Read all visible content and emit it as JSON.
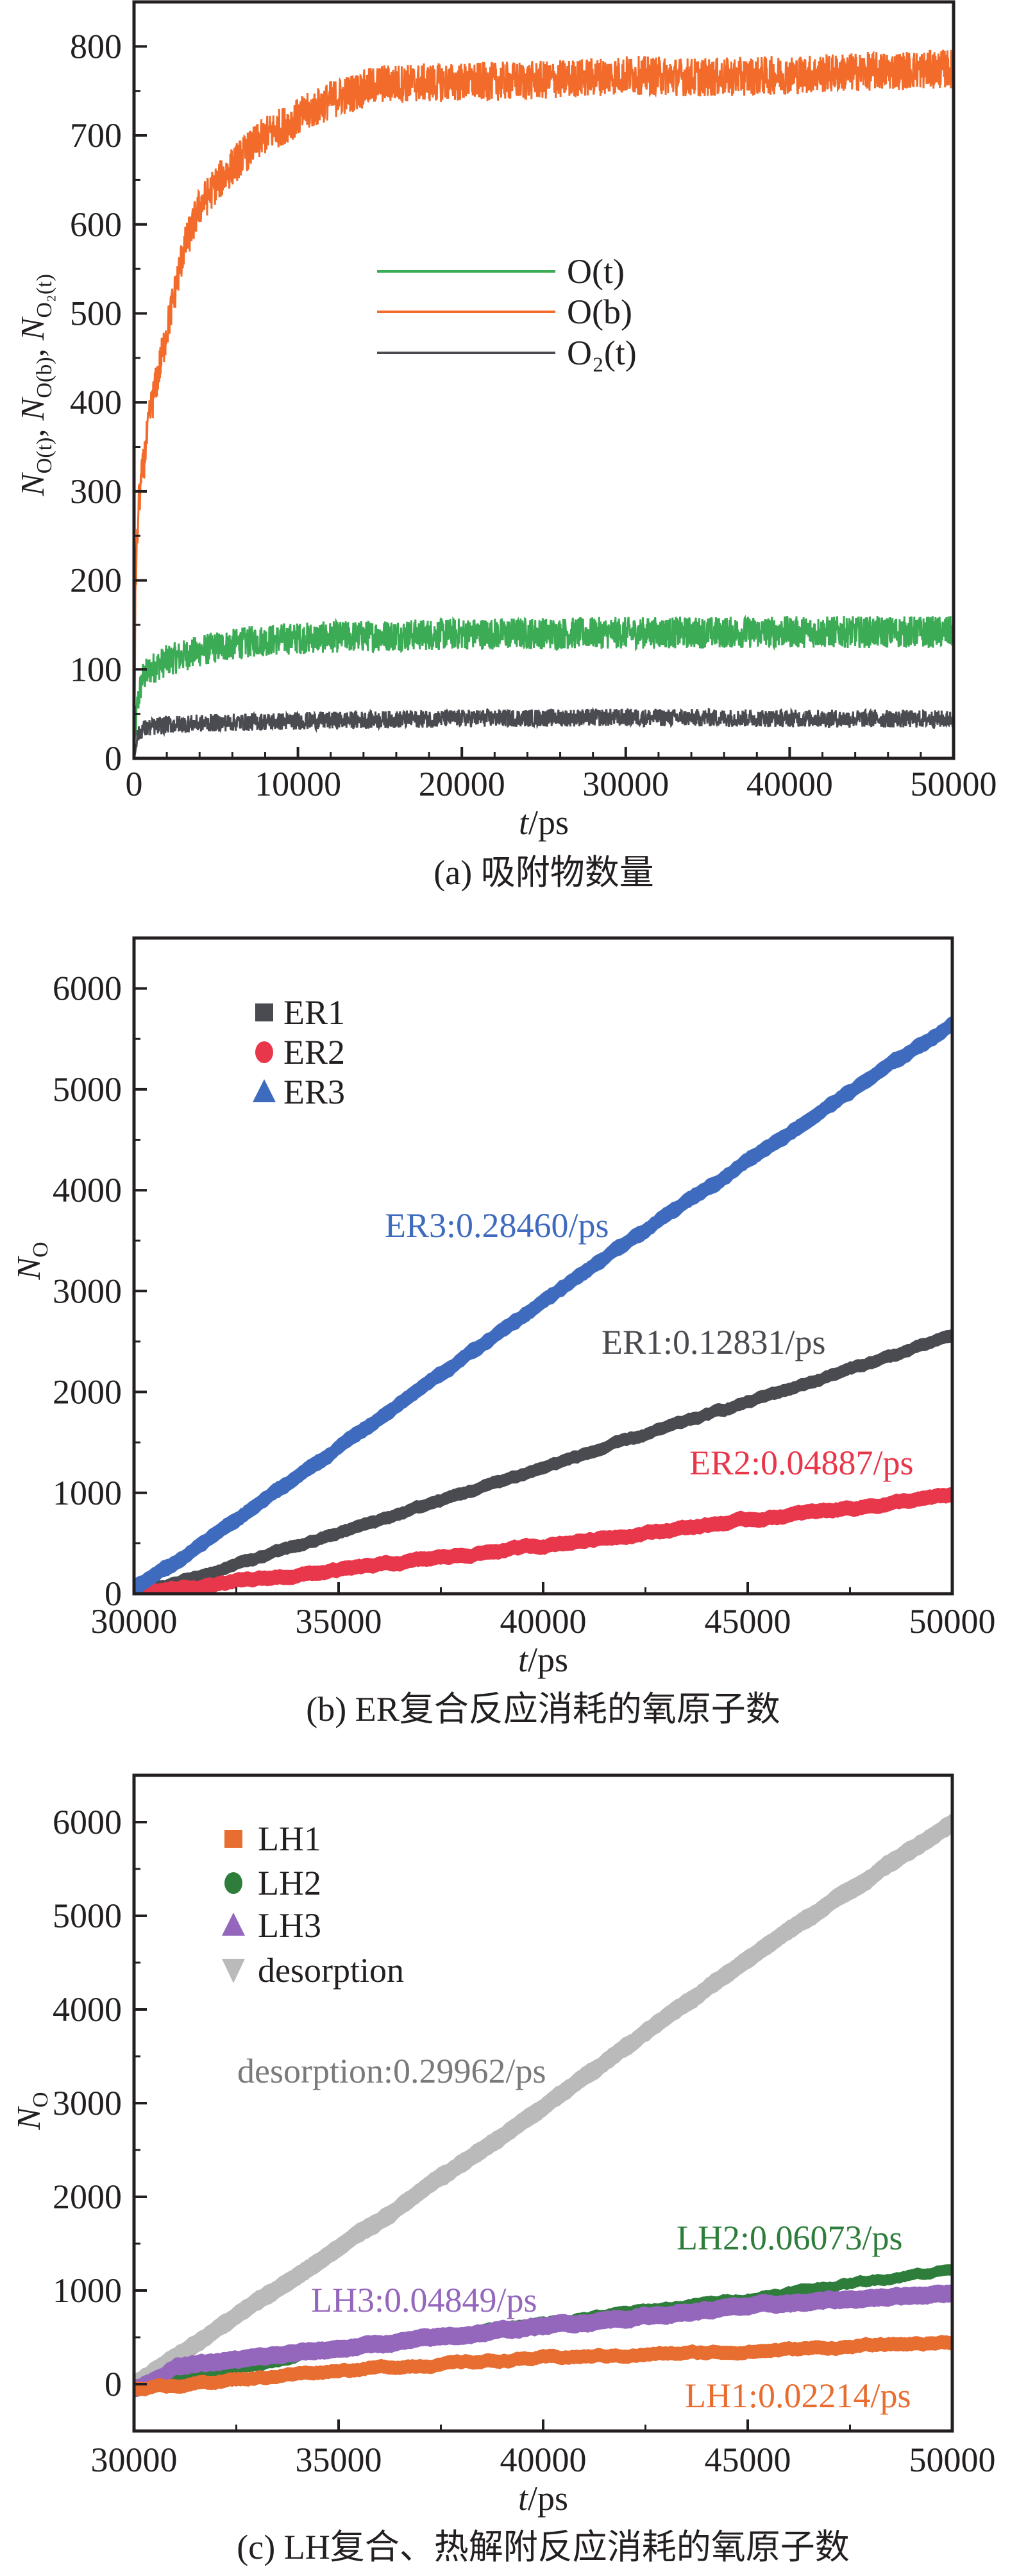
{
  "chart_data": [
    {
      "type": "line",
      "caption": "(a) 吸附物数量",
      "xlabel": {
        "italic": "t",
        "rest": "/ps"
      },
      "ylabel": [
        {
          "main": "N",
          "sub": "O(t)"
        },
        {
          "main": "N",
          "sub": "O(b)"
        },
        {
          "main": "N",
          "sub": "O₂(t)"
        }
      ],
      "ylabel_separator": ", ",
      "xlim": [
        0,
        50000
      ],
      "ylim": [
        0,
        850
      ],
      "xticks": [
        0,
        10000,
        20000,
        30000,
        40000,
        50000
      ],
      "yticks": [
        0,
        100,
        200,
        300,
        400,
        500,
        600,
        700,
        800
      ],
      "grid": false,
      "legend_position": "center",
      "series": [
        {
          "name": "O(t)",
          "color": "#3cab55",
          "x": [
            0,
            200,
            500,
            1000,
            2000,
            3500,
            5000,
            7500,
            10000,
            15000,
            20000,
            30000,
            40000,
            50000
          ],
          "y": [
            0,
            60,
            90,
            100,
            110,
            118,
            125,
            132,
            135,
            138,
            140,
            141,
            142,
            142
          ]
        },
        {
          "name": "O(b)",
          "color": "#f26b2a",
          "x": [
            0,
            100,
            300,
            1000,
            2000,
            3000,
            4000,
            5000,
            6500,
            8000,
            10000,
            12000,
            15000,
            20000,
            25000,
            30000,
            35000,
            40000,
            45000,
            50000
          ],
          "y": [
            0,
            200,
            290,
            390,
            480,
            570,
            620,
            645,
            675,
            700,
            720,
            740,
            758,
            760,
            762,
            768,
            765,
            768,
            772,
            775
          ]
        },
        {
          "name": "O₂(t)",
          "color": "#4a4b50",
          "x": [
            0,
            200,
            500,
            2000,
            5000,
            10000,
            20000,
            30000,
            40000,
            50000
          ],
          "y": [
            0,
            25,
            33,
            38,
            40,
            42,
            45,
            46,
            45,
            44
          ]
        }
      ]
    },
    {
      "type": "area",
      "caption": "(b) ER复合反应消耗的氧原子数",
      "xlabel": {
        "italic": "t",
        "rest": "/ps"
      },
      "ylabel": [
        {
          "main": "N",
          "sub": "O"
        }
      ],
      "xlim": [
        30000,
        50000
      ],
      "ylim": [
        0,
        6500
      ],
      "xticks": [
        30000,
        35000,
        40000,
        45000,
        50000
      ],
      "yticks": [
        0,
        1000,
        2000,
        3000,
        4000,
        5000,
        6000
      ],
      "grid": false,
      "legend_position": "top-left",
      "series": [
        {
          "name": "ER1",
          "marker": "square",
          "color": "#4a4b50",
          "rate_label": "ER1:0.12831/ps",
          "x": [
            30000,
            31000,
            35000,
            40000,
            45000,
            50000
          ],
          "y": [
            0,
            100,
            600,
            1250,
            1900,
            2550
          ]
        },
        {
          "name": "ER2",
          "marker": "circle",
          "color": "#e8364a",
          "rate_label": "ER2:0.04887/ps",
          "x": [
            30000,
            35000,
            40000,
            45000,
            50000
          ],
          "y": [
            0,
            230,
            480,
            730,
            970
          ]
        },
        {
          "name": "ER3",
          "marker": "triangle-up",
          "color": "#3f6bbf",
          "rate_label": "ER3:0.28460/ps",
          "x": [
            30000,
            31000,
            35000,
            40000,
            45000,
            50000
          ],
          "y": [
            60,
            300,
            1450,
            2900,
            4300,
            5650
          ]
        }
      ]
    },
    {
      "type": "area",
      "caption": "(c) LH复合、热解附反应消耗的氧原子数",
      "xlabel": {
        "italic": "t",
        "rest": "/ps"
      },
      "ylabel": [
        {
          "main": "N",
          "sub": "O"
        }
      ],
      "xlim": [
        30000,
        50000
      ],
      "ylim": [
        -500,
        6500
      ],
      "xticks": [
        30000,
        35000,
        40000,
        45000,
        50000
      ],
      "yticks": [
        0,
        1000,
        2000,
        3000,
        4000,
        5000,
        6000
      ],
      "grid": false,
      "legend_position": "top-left",
      "series": [
        {
          "name": "LH1",
          "marker": "square",
          "color": "#e86d30",
          "rate_label": "LH1:0.02214/ps",
          "x": [
            30000,
            35000,
            40000,
            45000,
            50000
          ],
          "y": [
            -50,
            150,
            280,
            350,
            450
          ]
        },
        {
          "name": "LH2",
          "marker": "circle",
          "color": "#2e7d3b",
          "rate_label": "LH2:0.06073/ps",
          "x": [
            30000,
            35000,
            40000,
            45000,
            50000
          ],
          "y": [
            -50,
            380,
            660,
            920,
            1230
          ]
        },
        {
          "name": "LH3",
          "marker": "triangle-up",
          "color": "#9467bd",
          "rate_label": "LH3:0.04849/ps",
          "x": [
            30000,
            31000,
            35000,
            40000,
            45000,
            50000
          ],
          "y": [
            -50,
            180,
            380,
            620,
            830,
            980
          ]
        },
        {
          "name": "desorption",
          "marker": "triangle-down",
          "color": "#bababa",
          "rate_label": "desorption:0.29962/ps",
          "x": [
            30000,
            35000,
            40000,
            45000,
            50000
          ],
          "y": [
            0,
            1450,
            2950,
            4550,
            6000
          ]
        }
      ]
    }
  ]
}
